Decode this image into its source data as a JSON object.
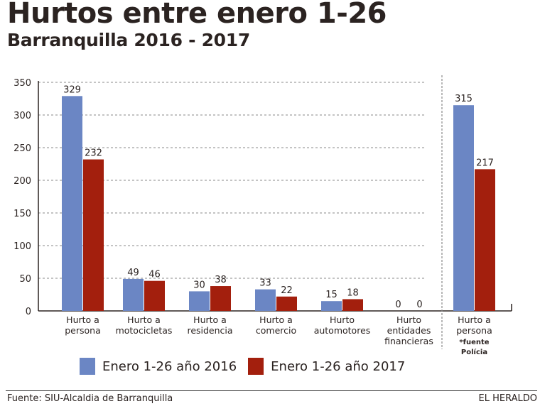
{
  "header": {
    "title": "Hurtos entre enero 1-26",
    "subtitle": "Barranquilla 2016 - 2017"
  },
  "colors": {
    "series_2016": "#6b86c4",
    "series_2017": "#a31f0d",
    "text": "#2b2321"
  },
  "chart_data": {
    "type": "bar",
    "title": "Hurtos entre enero 1-26",
    "subtitle": "Barranquilla 2016 - 2017",
    "xlabel": "",
    "ylabel": "",
    "ylim": [
      0,
      350
    ],
    "yticks": [
      0,
      50,
      100,
      150,
      200,
      250,
      300,
      350
    ],
    "grid": true,
    "legend": "bottom",
    "categories": [
      [
        "Hurto a",
        "persona"
      ],
      [
        "Hurto a",
        "motocicletas"
      ],
      [
        "Hurto a",
        "residencia"
      ],
      [
        "Hurto a",
        "comercio"
      ],
      [
        "Hurto",
        "automotores"
      ],
      [
        "Hurto",
        "entidades",
        "financieras"
      ],
      [
        "Hurto a",
        "persona"
      ]
    ],
    "category_notes": [
      "",
      "",
      "",
      "",
      "",
      "",
      "*fuente Polícia"
    ],
    "separated_group_index": 6,
    "series": [
      {
        "name": "Enero 1-26 año 2016",
        "values": [
          329,
          49,
          30,
          33,
          15,
          0,
          315
        ]
      },
      {
        "name": "Enero 1-26 año 2017",
        "values": [
          232,
          46,
          38,
          22,
          18,
          0,
          217
        ]
      }
    ]
  },
  "legend": {
    "items": [
      {
        "label": "Enero 1-26 año 2016"
      },
      {
        "label": "Enero 1-26 año 2017"
      }
    ]
  },
  "footer": {
    "source": "Fuente: SIU-Alcaldia de Barranquilla",
    "brand": "EL HERALDO"
  }
}
